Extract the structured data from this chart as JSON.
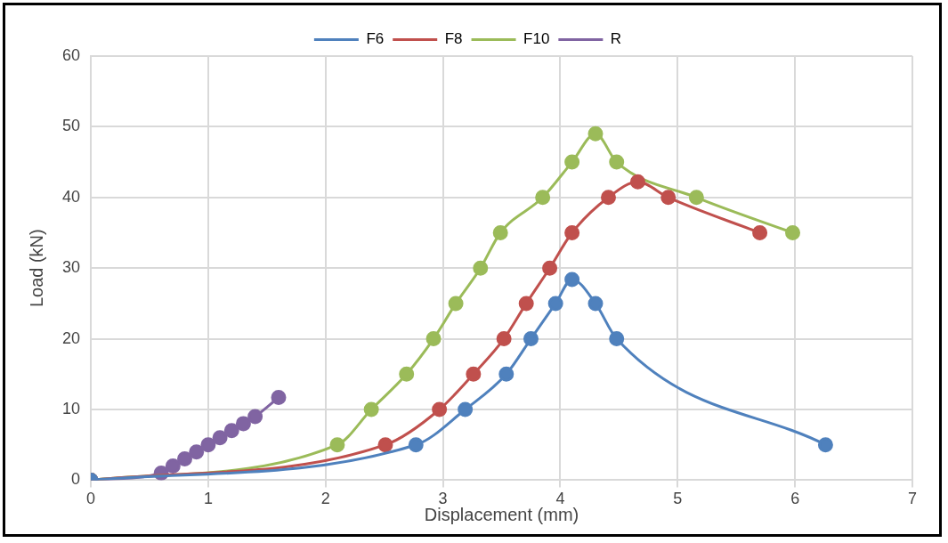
{
  "chart_data": {
    "type": "line",
    "xlabel": "Displacement (mm)",
    "ylabel": "Load (kN)",
    "xlim": [
      0,
      7
    ],
    "xticks": [
      0,
      1,
      2,
      3,
      4,
      5,
      6,
      7
    ],
    "ylim": [
      0,
      60
    ],
    "yticks": [
      0,
      10,
      20,
      30,
      40,
      50,
      60
    ],
    "grid": true,
    "legend": "top",
    "marker": "circle",
    "line_style": "solid",
    "series": [
      {
        "name": "F6",
        "color": "#4f81bd",
        "x": [
          0,
          2.77,
          3.19,
          3.54,
          3.75,
          3.96,
          4.1,
          4.3,
          4.48,
          6.26
        ],
        "values": [
          0,
          5,
          10,
          15,
          20,
          25,
          28.4,
          25,
          20,
          5
        ]
      },
      {
        "name": "F8",
        "color": "#c0504d",
        "x": [
          0,
          2.51,
          2.97,
          3.26,
          3.52,
          3.71,
          3.91,
          4.1,
          4.41,
          4.66,
          4.92,
          5.7
        ],
        "values": [
          0,
          5,
          10,
          15,
          20,
          25,
          30,
          35,
          40,
          42.2,
          40,
          35
        ]
      },
      {
        "name": "F10",
        "color": "#9bbb59",
        "x": [
          0,
          2.1,
          2.39,
          2.69,
          2.92,
          3.11,
          3.32,
          3.49,
          3.85,
          4.1,
          4.3,
          4.48,
          5.16,
          5.98
        ],
        "values": [
          0,
          5,
          10,
          15,
          20,
          25,
          30,
          35,
          40,
          45,
          49,
          45,
          40,
          35
        ]
      },
      {
        "name": "R",
        "color": "#8064a2",
        "x": [
          0,
          0.6,
          0.7,
          0.8,
          0.9,
          1.0,
          1.1,
          1.2,
          1.3,
          1.4,
          1.6
        ],
        "values": [
          0,
          1,
          2,
          3,
          4,
          5,
          6,
          7,
          8,
          9,
          11.7
        ]
      }
    ]
  }
}
